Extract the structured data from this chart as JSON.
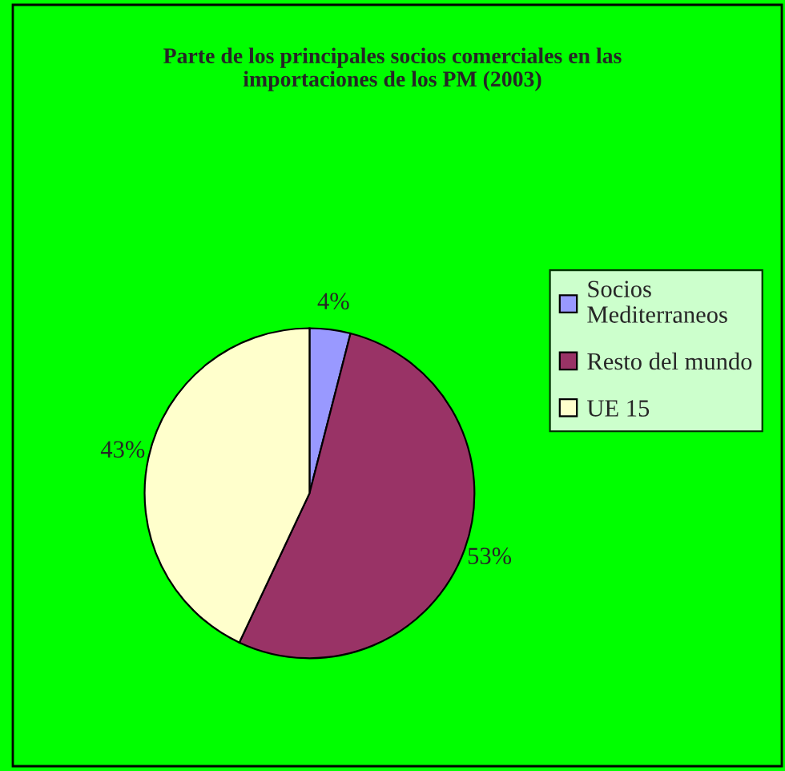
{
  "chart_data": {
    "type": "pie",
    "title": "Parte de los principales socios comerciales en las importaciones de los PM (2003)",
    "categories": [
      "Socios Mediterraneos",
      "Resto del mundo",
      "UE 15"
    ],
    "values": [
      4,
      53,
      43
    ],
    "colors": [
      "#9999ff",
      "#993366",
      "#ffffcc"
    ],
    "value_labels": [
      "4%",
      "53%",
      "43%"
    ],
    "legend": "right"
  }
}
